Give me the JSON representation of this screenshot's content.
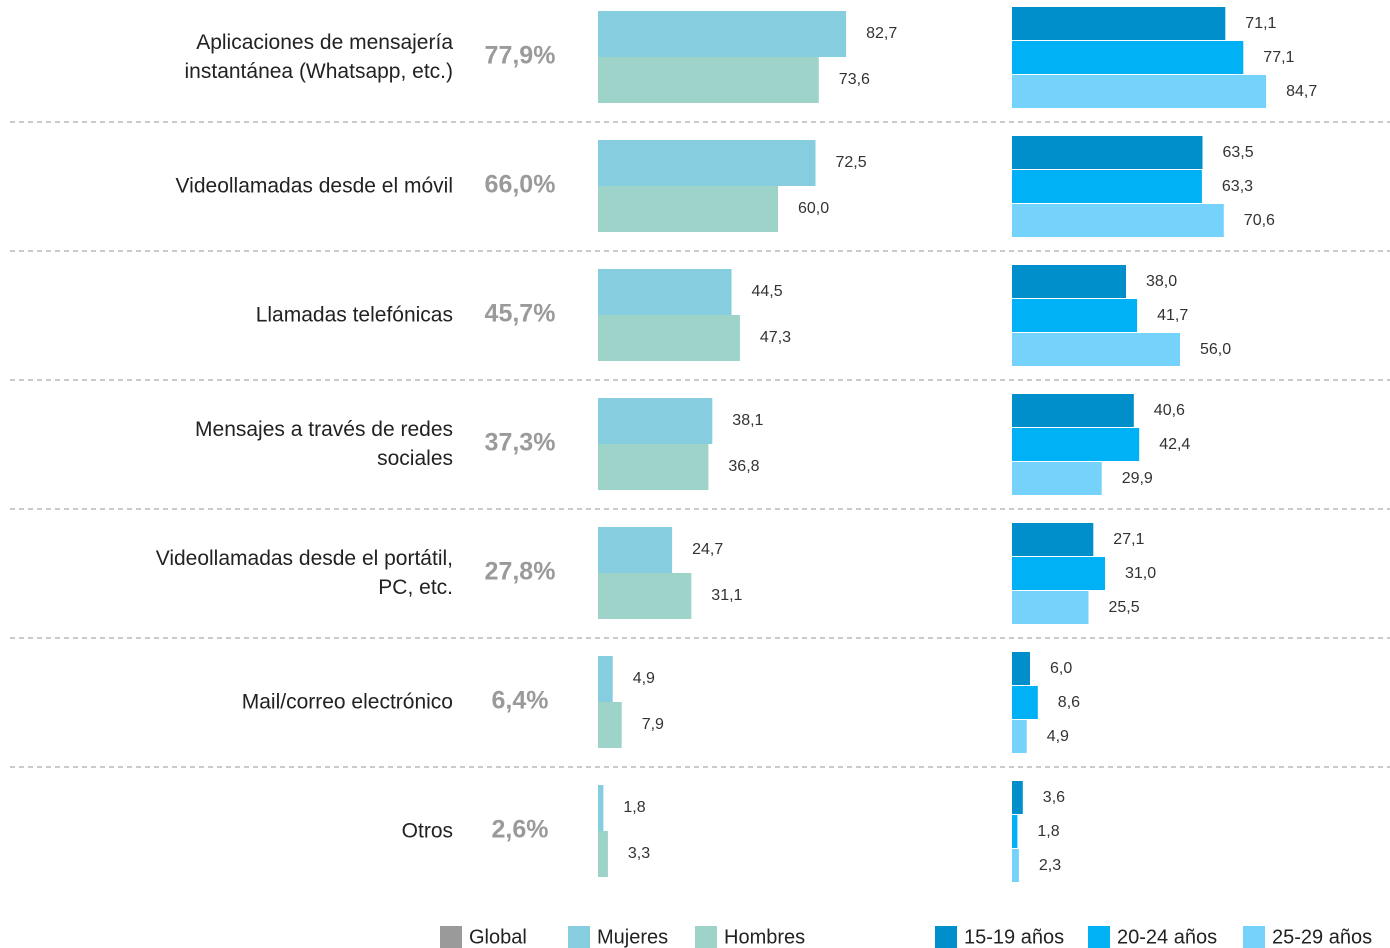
{
  "chart_data": [
    {
      "type": "bar",
      "orientation": "horizontal",
      "categories": [
        "Aplicaciones de mensajería\ninstantánea (Whatsapp, etc.)",
        "Videollamadas desde el móvil",
        "Llamadas telefónicas",
        "Mensajes a través de redes\nsociales",
        "Videollamadas desde el portátil,\nPC, etc.",
        "Mail/correo electrónico",
        "Otros"
      ],
      "xlim": [
        0,
        100
      ],
      "series": [
        {
          "name": "Global",
          "color": "#9a9a9a",
          "values": [
            77.9,
            66.0,
            45.7,
            37.3,
            27.8,
            6.4,
            2.6
          ],
          "value_labels": [
            "77,9%",
            "66,0%",
            "45,7%",
            "37,3%",
            "27,8%",
            "6,4%",
            "2,6%"
          ]
        },
        {
          "name": "Mujeres",
          "color": "#86cde0",
          "values": [
            82.7,
            72.5,
            44.5,
            38.1,
            24.7,
            4.9,
            1.8
          ],
          "value_labels": [
            "82,7",
            "72,5",
            "44,5",
            "38,1",
            "24,7",
            "4,9",
            "1,8"
          ]
        },
        {
          "name": "Hombres",
          "color": "#9dd3c8",
          "values": [
            73.6,
            60.0,
            47.3,
            36.8,
            31.1,
            7.9,
            3.3
          ],
          "value_labels": [
            "73,6",
            "60,0",
            "47,3",
            "36,8",
            "31,1",
            "7,9",
            "3,3"
          ]
        }
      ]
    },
    {
      "type": "bar",
      "orientation": "horizontal",
      "xlim": [
        0,
        100
      ],
      "series": [
        {
          "name": "15-19 años",
          "color": "#008fca",
          "values": [
            71.1,
            63.5,
            38.0,
            40.6,
            27.1,
            6.0,
            3.6
          ],
          "value_labels": [
            "71,1",
            "63,5",
            "38,0",
            "40,6",
            "27,1",
            "6,0",
            "3,6"
          ]
        },
        {
          "name": "20-24 años",
          "color": "#00b2f5",
          "values": [
            77.1,
            63.3,
            41.7,
            42.4,
            31.0,
            8.6,
            1.8
          ],
          "value_labels": [
            "77,1",
            "63,3",
            "41,7",
            "42,4",
            "31,0",
            "8,6",
            "1,8"
          ]
        },
        {
          "name": "25-29 años",
          "color": "#75d3fb",
          "values": [
            84.7,
            70.6,
            56.0,
            29.9,
            25.5,
            4.9,
            2.3
          ],
          "value_labels": [
            "84,7",
            "70,6",
            "56,0",
            "29,9",
            "25,5",
            "4,9",
            "2,3"
          ]
        }
      ]
    }
  ]
}
